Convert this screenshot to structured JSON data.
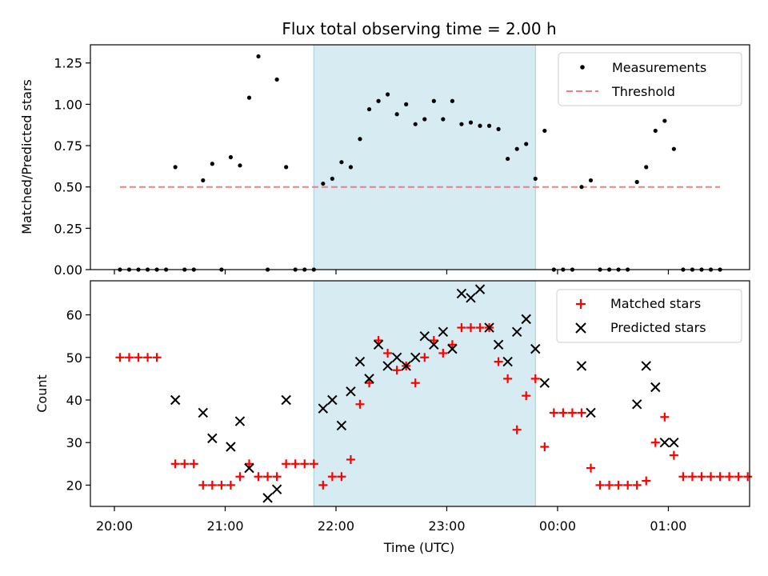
{
  "chart_data": [
    {
      "type": "scatter",
      "title": "Flux total observing time = 2.00 h",
      "xlabel": "",
      "ylabel": "Matched/Predicted stars",
      "ylim": [
        0,
        1.36
      ],
      "xlim": [
        "19:47",
        "01:44"
      ],
      "x_unit": "time of day (UTC), axis starts 20:00 on the first day",
      "yticks": [
        "0.00",
        "0.25",
        "0.50",
        "0.75",
        "1.00",
        "1.25"
      ],
      "shaded_interval": [
        "21:48",
        "23:48"
      ],
      "legend": {
        "position": "top-right",
        "entries": [
          "Measurements",
          "Threshold"
        ]
      },
      "threshold": {
        "name": "Threshold",
        "value": 0.5,
        "x_start": "20:03",
        "x_end": "01:28",
        "color": "#f08080",
        "style": "dashed"
      },
      "series": [
        {
          "name": "Measurements",
          "color": "#000000",
          "marker": "dot",
          "points": [
            [
              "20:03",
              0
            ],
            [
              "20:08",
              0
            ],
            [
              "20:13",
              0
            ],
            [
              "20:18",
              0
            ],
            [
              "20:23",
              0
            ],
            [
              "20:28",
              0
            ],
            [
              "20:33",
              0.62
            ],
            [
              "20:38",
              0
            ],
            [
              "20:43",
              0
            ],
            [
              "20:48",
              0.54
            ],
            [
              "20:53",
              0.64
            ],
            [
              "20:58",
              0
            ],
            [
              "21:03",
              0.68
            ],
            [
              "21:08",
              0.63
            ],
            [
              "21:13",
              1.04
            ],
            [
              "21:18",
              1.29
            ],
            [
              "21:23",
              0
            ],
            [
              "21:28",
              1.15
            ],
            [
              "21:33",
              0.62
            ],
            [
              "21:38",
              0
            ],
            [
              "21:43",
              0
            ],
            [
              "21:48",
              0
            ],
            [
              "21:53",
              0.52
            ],
            [
              "21:58",
              0.55
            ],
            [
              "22:03",
              0.65
            ],
            [
              "22:08",
              0.62
            ],
            [
              "22:13",
              0.79
            ],
            [
              "22:18",
              0.97
            ],
            [
              "22:23",
              1.02
            ],
            [
              "22:28",
              1.06
            ],
            [
              "22:33",
              0.94
            ],
            [
              "22:38",
              1.0
            ],
            [
              "22:43",
              0.88
            ],
            [
              "22:48",
              0.91
            ],
            [
              "22:53",
              1.02
            ],
            [
              "22:58",
              0.91
            ],
            [
              "23:03",
              1.02
            ],
            [
              "23:08",
              0.88
            ],
            [
              "23:13",
              0.89
            ],
            [
              "23:18",
              0.87
            ],
            [
              "23:23",
              0.87
            ],
            [
              "23:28",
              0.85
            ],
            [
              "23:33",
              0.67
            ],
            [
              "23:38",
              0.73
            ],
            [
              "23:43",
              0.76
            ],
            [
              "23:48",
              0.55
            ],
            [
              "23:53",
              0.84
            ],
            [
              "23:58",
              0
            ],
            [
              "00:03",
              0
            ],
            [
              "00:08",
              0
            ],
            [
              "00:13",
              0.5
            ],
            [
              "00:18",
              0.54
            ],
            [
              "00:23",
              0
            ],
            [
              "00:28",
              0
            ],
            [
              "00:33",
              0
            ],
            [
              "00:38",
              0
            ],
            [
              "00:43",
              0.53
            ],
            [
              "00:48",
              0.62
            ],
            [
              "00:53",
              0.84
            ],
            [
              "00:58",
              0.9
            ],
            [
              "01:03",
              0.73
            ],
            [
              "01:08",
              0
            ],
            [
              "01:13",
              0
            ],
            [
              "01:18",
              0
            ],
            [
              "01:23",
              0
            ],
            [
              "01:28",
              0
            ]
          ]
        }
      ]
    },
    {
      "type": "scatter",
      "title": "",
      "xlabel": "Time (UTC)",
      "ylabel": "Count",
      "ylim": [
        15,
        68
      ],
      "xlim": [
        "19:47",
        "01:44"
      ],
      "xticks": [
        "20:00",
        "21:00",
        "22:00",
        "23:00",
        "00:00",
        "01:00"
      ],
      "yticks": [
        "20",
        "30",
        "40",
        "50",
        "60"
      ],
      "shaded_interval": [
        "21:48",
        "23:48"
      ],
      "legend": {
        "position": "top-right",
        "entries": [
          "Matched stars",
          "Predicted stars"
        ]
      },
      "series": [
        {
          "name": "Matched stars",
          "color": "#ff0000",
          "marker": "plus",
          "points": [
            [
              "20:03",
              50
            ],
            [
              "20:08",
              50
            ],
            [
              "20:13",
              50
            ],
            [
              "20:18",
              50
            ],
            [
              "20:23",
              50
            ],
            [
              "20:33",
              25
            ],
            [
              "20:38",
              25
            ],
            [
              "20:43",
              25
            ],
            [
              "20:48",
              20
            ],
            [
              "20:53",
              20
            ],
            [
              "20:58",
              20
            ],
            [
              "21:03",
              20
            ],
            [
              "21:08",
              22
            ],
            [
              "21:13",
              25
            ],
            [
              "21:18",
              22
            ],
            [
              "21:23",
              22
            ],
            [
              "21:28",
              22
            ],
            [
              "21:33",
              25
            ],
            [
              "21:38",
              25
            ],
            [
              "21:43",
              25
            ],
            [
              "21:48",
              25
            ],
            [
              "21:53",
              20
            ],
            [
              "21:58",
              22
            ],
            [
              "22:03",
              22
            ],
            [
              "22:08",
              26
            ],
            [
              "22:13",
              39
            ],
            [
              "22:18",
              44
            ],
            [
              "22:23",
              54
            ],
            [
              "22:28",
              51
            ],
            [
              "22:33",
              47
            ],
            [
              "22:38",
              48
            ],
            [
              "22:43",
              44
            ],
            [
              "22:48",
              50
            ],
            [
              "22:53",
              54
            ],
            [
              "22:58",
              51
            ],
            [
              "23:03",
              53
            ],
            [
              "23:08",
              57
            ],
            [
              "23:13",
              57
            ],
            [
              "23:18",
              57
            ],
            [
              "23:23",
              57
            ],
            [
              "23:28",
              49
            ],
            [
              "23:33",
              45
            ],
            [
              "23:38",
              33
            ],
            [
              "23:43",
              41
            ],
            [
              "23:48",
              45
            ],
            [
              "23:53",
              29
            ],
            [
              "23:58",
              37
            ],
            [
              "00:03",
              37
            ],
            [
              "00:08",
              37
            ],
            [
              "00:13",
              37
            ],
            [
              "00:18",
              24
            ],
            [
              "00:23",
              20
            ],
            [
              "00:28",
              20
            ],
            [
              "00:33",
              20
            ],
            [
              "00:38",
              20
            ],
            [
              "00:43",
              20
            ],
            [
              "00:48",
              21
            ],
            [
              "00:53",
              30
            ],
            [
              "00:58",
              36
            ],
            [
              "01:03",
              27
            ],
            [
              "01:08",
              22
            ],
            [
              "01:13",
              22
            ],
            [
              "01:18",
              22
            ],
            [
              "01:23",
              22
            ],
            [
              "01:28",
              22
            ],
            [
              "01:33",
              22
            ],
            [
              "01:38",
              22
            ],
            [
              "01:43",
              22
            ]
          ]
        },
        {
          "name": "Predicted stars",
          "color": "#000000",
          "marker": "x",
          "points": [
            [
              "20:33",
              40
            ],
            [
              "20:48",
              37
            ],
            [
              "20:53",
              31
            ],
            [
              "21:03",
              29
            ],
            [
              "21:08",
              35
            ],
            [
              "21:13",
              24
            ],
            [
              "21:23",
              17
            ],
            [
              "21:28",
              19
            ],
            [
              "21:33",
              40
            ],
            [
              "21:53",
              38
            ],
            [
              "21:58",
              40
            ],
            [
              "22:03",
              34
            ],
            [
              "22:08",
              42
            ],
            [
              "22:13",
              49
            ],
            [
              "22:18",
              45
            ],
            [
              "22:23",
              53
            ],
            [
              "22:28",
              48
            ],
            [
              "22:33",
              50
            ],
            [
              "22:38",
              48
            ],
            [
              "22:43",
              50
            ],
            [
              "22:48",
              55
            ],
            [
              "22:53",
              53
            ],
            [
              "22:58",
              56
            ],
            [
              "23:03",
              52
            ],
            [
              "23:08",
              65
            ],
            [
              "23:13",
              64
            ],
            [
              "23:18",
              66
            ],
            [
              "23:23",
              57
            ],
            [
              "23:28",
              53
            ],
            [
              "23:33",
              49
            ],
            [
              "23:38",
              56
            ],
            [
              "23:43",
              59
            ],
            [
              "23:48",
              52
            ],
            [
              "23:53",
              44
            ],
            [
              "00:13",
              48
            ],
            [
              "00:18",
              37
            ],
            [
              "00:43",
              39
            ],
            [
              "00:48",
              48
            ],
            [
              "00:53",
              43
            ],
            [
              "00:58",
              30
            ],
            [
              "01:03",
              30
            ]
          ]
        }
      ]
    }
  ]
}
